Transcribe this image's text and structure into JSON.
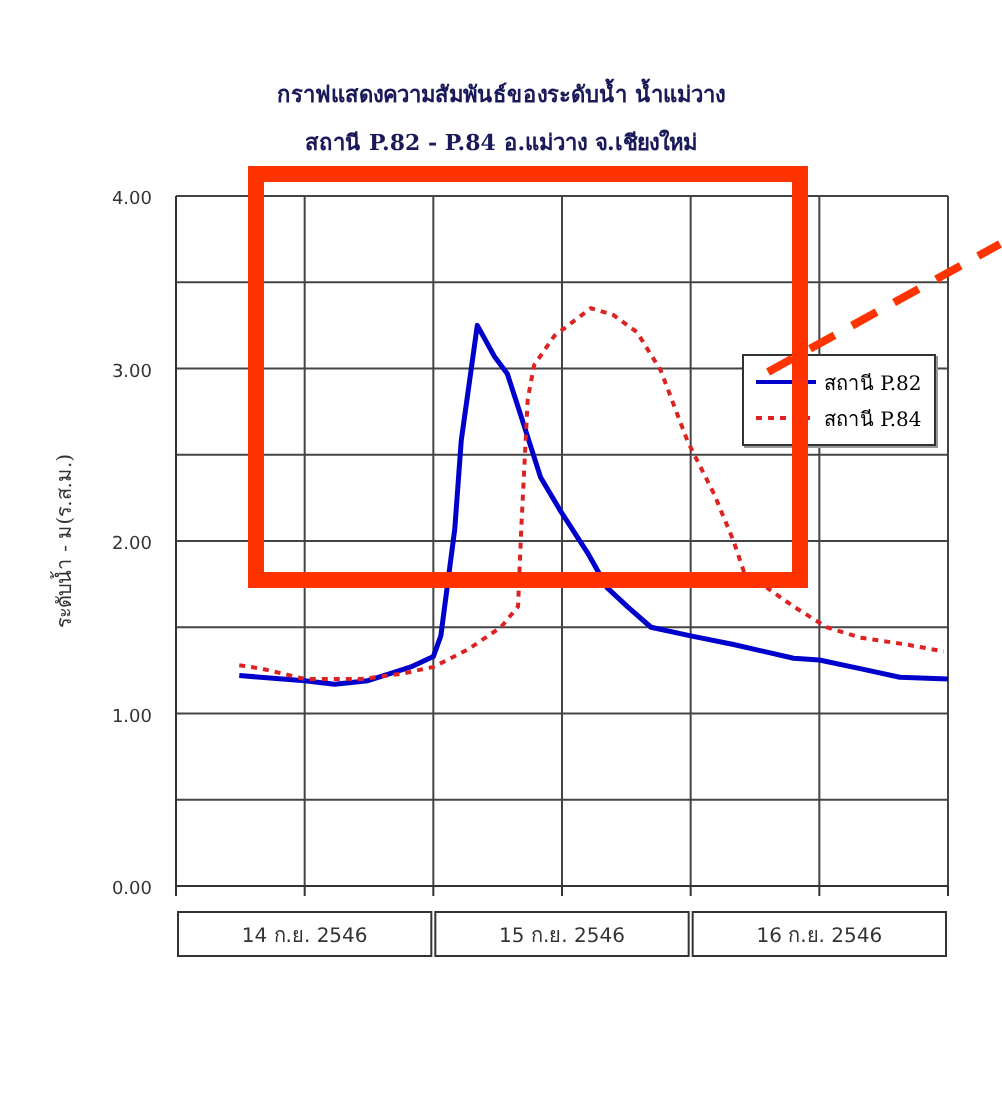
{
  "chart_data": {
    "type": "line",
    "title": "กราฟแสดงความสัมพันธ์ของระดับน้ำ น้ำแม่วาง",
    "subtitle": "สถานี P.82 - P.84 อ.แม่วาง จ.เชียงใหม่",
    "ylabel": "ระดับน้ำ - ม(ร.ส.ม.)",
    "xlim": [
      "--09-14T00:00",
      "--09-17T00:00"
    ],
    "xticks": [
      {
        "value": "--09-14T00:00",
        "label": null
      },
      {
        "value": "--09-14T12:00",
        "label": "14 ก.ย. 2546"
      },
      {
        "value": "--09-15T00:00",
        "label": null
      },
      {
        "value": "--09-15T12:00",
        "label": "15 ก.ย. 2546"
      },
      {
        "value": "--09-16T00:00",
        "label": null
      },
      {
        "value": "--09-16T12:00",
        "label": "16 ก.ย. 2546"
      },
      {
        "value": "--09-17T00:00",
        "label": null
      }
    ],
    "ylim": [
      0,
      4
    ],
    "yticks": [
      {
        "value": 0,
        "label": "0.00"
      },
      {
        "value": 0.5,
        "label": null
      },
      {
        "value": 1,
        "label": "1.00"
      },
      {
        "value": 1.5,
        "label": null
      },
      {
        "value": 2,
        "label": "2.00"
      },
      {
        "value": 2.5,
        "label": null
      },
      {
        "value": 3,
        "label": "3.00"
      },
      {
        "value": 3.5,
        "label": null
      },
      {
        "value": 4,
        "label": "4.00"
      }
    ],
    "grid": true,
    "legend": "right",
    "marker": "none",
    "series": [
      {
        "name": "สถานี P.82",
        "color": "#0000cc",
        "line_style": "solid",
        "x": [
          "--09-14T05:54",
          "--09-14T12:00",
          "--09-14T14:48",
          "--09-14T17:54",
          "--09-14T20:24",
          "--09-14T21:54",
          "--09-15T00:00",
          "--09-15T00:42",
          "--09-15T02:00",
          "--09-15T02:36",
          "--09-15T04:06",
          "--09-15T05:42",
          "--09-15T06:54",
          "--09-15T08:12",
          "--09-15T10:00",
          "--09-15T11:54",
          "--09-15T14:24",
          "--09-15T16:12",
          "--09-15T18:06",
          "--09-15T20:18",
          "--09-16T00:00",
          "--09-16T04:00",
          "--09-16T09:36",
          "--09-16T12:00",
          "--09-16T15:48",
          "--09-16T19:30",
          "--09-17T00:00"
        ],
        "values": [
          1.22,
          1.19,
          1.17,
          1.19,
          1.24,
          1.27,
          1.33,
          1.45,
          2.07,
          2.58,
          3.25,
          3.07,
          2.97,
          2.72,
          2.37,
          2.17,
          1.93,
          1.73,
          1.62,
          1.5,
          1.45,
          1.4,
          1.32,
          1.31,
          1.26,
          1.21,
          1.2
        ]
      },
      {
        "name": "สถานี P.84",
        "color": "#dd2222",
        "line_style": "dotted",
        "x": [
          "--09-14T05:54",
          "--09-14T08:00",
          "--09-14T12:00",
          "--09-14T17:18",
          "--09-14T21:00",
          "--09-15T00:00",
          "--09-15T03:12",
          "--09-15T06:18",
          "--09-15T07:54",
          "--09-15T08:12",
          "--09-15T08:48",
          "--09-15T09:24",
          "--09-15T11:18",
          "--09-15T14:42",
          "--09-15T16:48",
          "--09-15T19:00",
          "--09-15T21:12",
          "--09-15T23:42",
          "--09-16T02:12",
          "--09-16T04:00",
          "--09-16T05:18",
          "--09-16T07:06",
          "--09-16T09:36",
          "--09-16T12:42",
          "--09-16T15:48",
          "--09-16T20:06",
          "--09-16T23:36"
        ],
        "values": [
          1.28,
          1.26,
          1.2,
          1.2,
          1.23,
          1.27,
          1.37,
          1.5,
          1.62,
          2.07,
          2.82,
          3.02,
          3.19,
          3.35,
          3.31,
          3.21,
          2.99,
          2.58,
          2.27,
          2.0,
          1.76,
          1.73,
          1.62,
          1.5,
          1.44,
          1.4,
          1.36
        ]
      }
    ]
  }
}
